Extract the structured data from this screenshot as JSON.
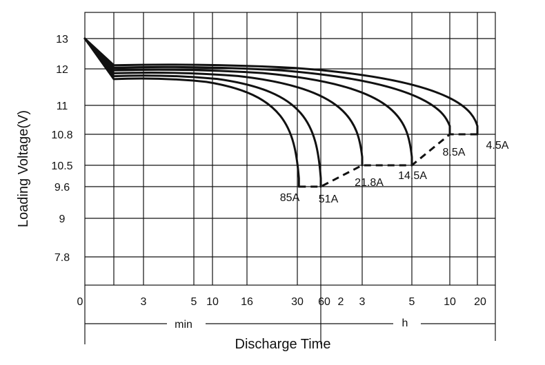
{
  "chart_data": {
    "type": "line",
    "xlabel": "Discharge Time",
    "ylabel": "Loading  Voltage(V)",
    "unit_min": "min",
    "unit_h": "h",
    "x_ticks": [
      "0",
      "3",
      "5",
      "10",
      "16",
      "30",
      "60",
      "2",
      "3",
      "5",
      "10",
      "20"
    ],
    "y_ticks": [
      "13",
      "12",
      "11",
      "10.8",
      "10.5",
      "9.6",
      "9",
      "7.8"
    ],
    "start": {
      "time_min": 0,
      "voltage": 13.0
    },
    "series": [
      {
        "name": "85A",
        "knee_voltage": 11.72,
        "end_time_min": 32,
        "end_voltage": 9.6
      },
      {
        "name": "51A",
        "knee_voltage": 11.8,
        "end_time_min": 60,
        "end_voltage": 9.6
      },
      {
        "name": "21.8A",
        "knee_voltage": 11.88,
        "end_time_min": 180,
        "end_voltage": 10.5
      },
      {
        "name": "14.5A",
        "knee_voltage": 11.96,
        "end_time_min": 300,
        "end_voltage": 10.5
      },
      {
        "name": "8.5A",
        "knee_voltage": 12.04,
        "end_time_min": 600,
        "end_voltage": 10.8
      },
      {
        "name": "4.5A",
        "knee_voltage": 12.12,
        "end_time_min": 1200,
        "end_voltage": 10.8
      }
    ],
    "cutoff_line": [
      {
        "time_min": 32,
        "voltage": 9.6
      },
      {
        "time_min": 60,
        "voltage": 9.6
      },
      {
        "time_min": 180,
        "voltage": 10.5
      },
      {
        "time_min": 300,
        "voltage": 10.5
      },
      {
        "time_min": 600,
        "voltage": 10.8
      },
      {
        "time_min": 1200,
        "voltage": 10.8
      }
    ],
    "grid": true
  }
}
